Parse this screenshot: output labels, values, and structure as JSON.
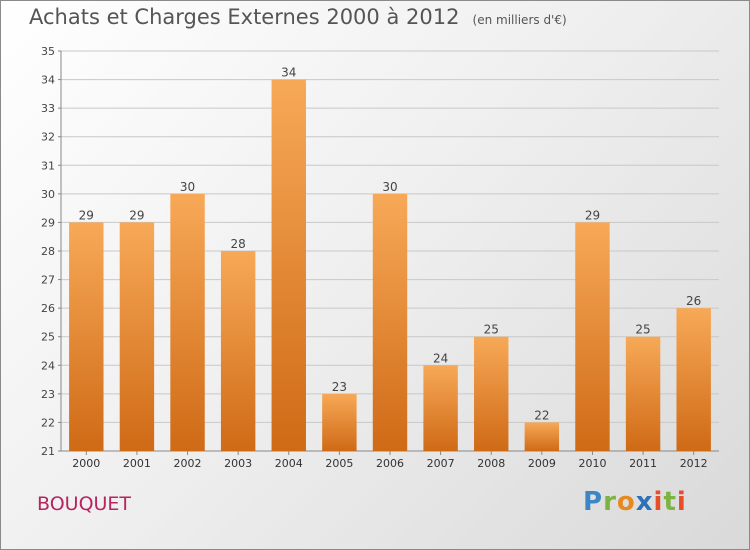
{
  "title": "Achats et Charges Externes 2000 à 2012",
  "unit": "(en milliers d'€)",
  "town": "BOUQUET",
  "logo": "Proxiti",
  "colors": {
    "bar": "#ee8a30",
    "bar_dark": "#d97421",
    "title": "#555555",
    "town": "#b7245f",
    "grid": "#c8c8c8"
  },
  "chart_data": {
    "type": "bar",
    "title": "Achats et Charges Externes 2000 à 2012",
    "subtitle": "(en milliers d'€)",
    "categories": [
      "2000",
      "2001",
      "2002",
      "2003",
      "2004",
      "2005",
      "2006",
      "2007",
      "2008",
      "2009",
      "2010",
      "2011",
      "2012"
    ],
    "values": [
      29,
      29,
      30,
      28,
      34,
      23,
      30,
      24,
      25,
      22,
      29,
      25,
      26
    ],
    "ylim": [
      21,
      35
    ],
    "yticks": [
      21,
      22,
      23,
      24,
      25,
      26,
      27,
      28,
      29,
      30,
      31,
      32,
      33,
      34,
      35
    ],
    "xlabel": "",
    "ylabel": "",
    "grid": true,
    "data_labels": true
  }
}
